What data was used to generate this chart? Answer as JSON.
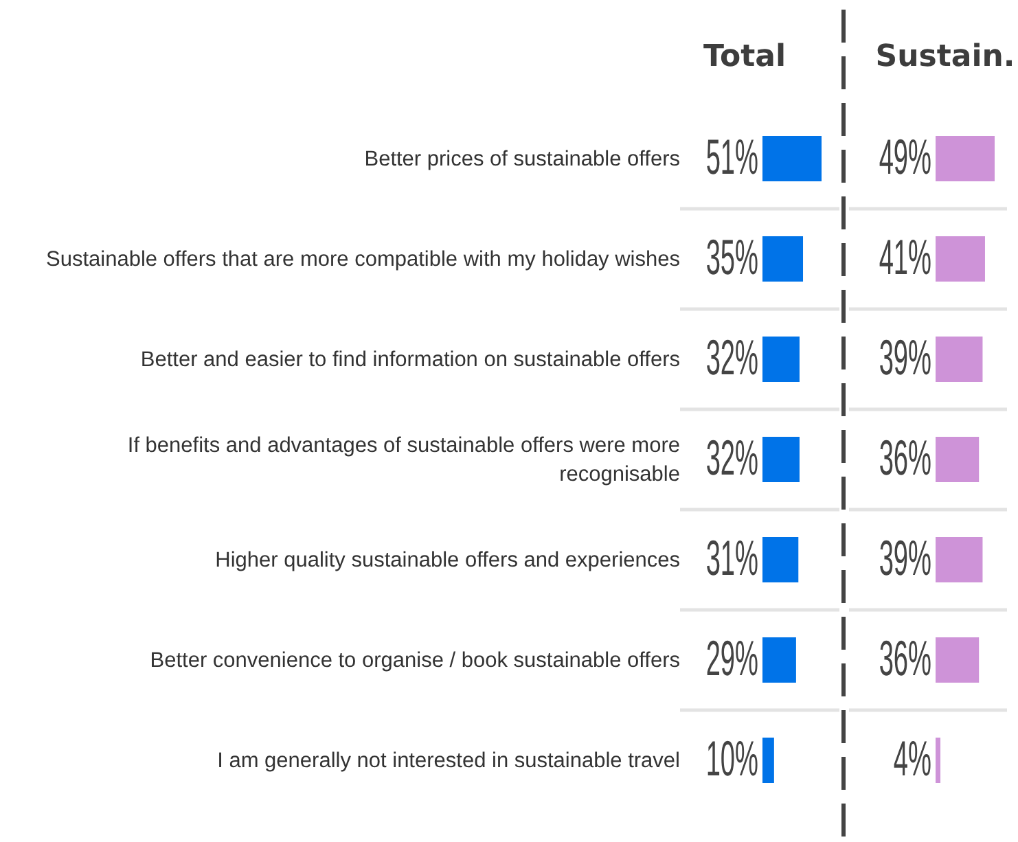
{
  "chart_data": [
    {
      "type": "bar",
      "orientation": "horizontal",
      "title": "Total",
      "categories": [
        "Better prices of sustainable offers",
        "Sustainable offers that are more compatible with my holiday wishes",
        "Better and easier to find information on sustainable offers",
        "If benefits and advantages of sustainable offers were more recognisable",
        "Higher quality sustainable offers and experiences",
        "Better convenience to organise / book sustainable offers",
        "I am generally not interested in sustainable travel"
      ],
      "values": [
        51,
        35,
        32,
        32,
        31,
        29,
        10
      ],
      "value_labels": [
        "51%",
        "35%",
        "32%",
        "32%",
        "31%",
        "29%",
        "10%"
      ],
      "color": "#0073e8",
      "grid": "y"
    },
    {
      "type": "bar",
      "orientation": "horizontal",
      "title": "Sustain.",
      "categories": [
        "Better prices of sustainable offers",
        "Sustainable offers that are more compatible with my holiday wishes",
        "Better and easier to find information on sustainable offers",
        "If benefits and advantages of sustainable offers were more recognisable",
        "Higher quality sustainable offers and experiences",
        "Better convenience to organise / book sustainable offers",
        "I am generally not interested in sustainable travel"
      ],
      "values": [
        49,
        41,
        39,
        36,
        39,
        36,
        4
      ],
      "value_labels": [
        "49%",
        "41%",
        "39%",
        "36%",
        "39%",
        "36%",
        "4%"
      ],
      "color": "#ce93d8",
      "grid": "y",
      "tick_labels": false
    }
  ]
}
